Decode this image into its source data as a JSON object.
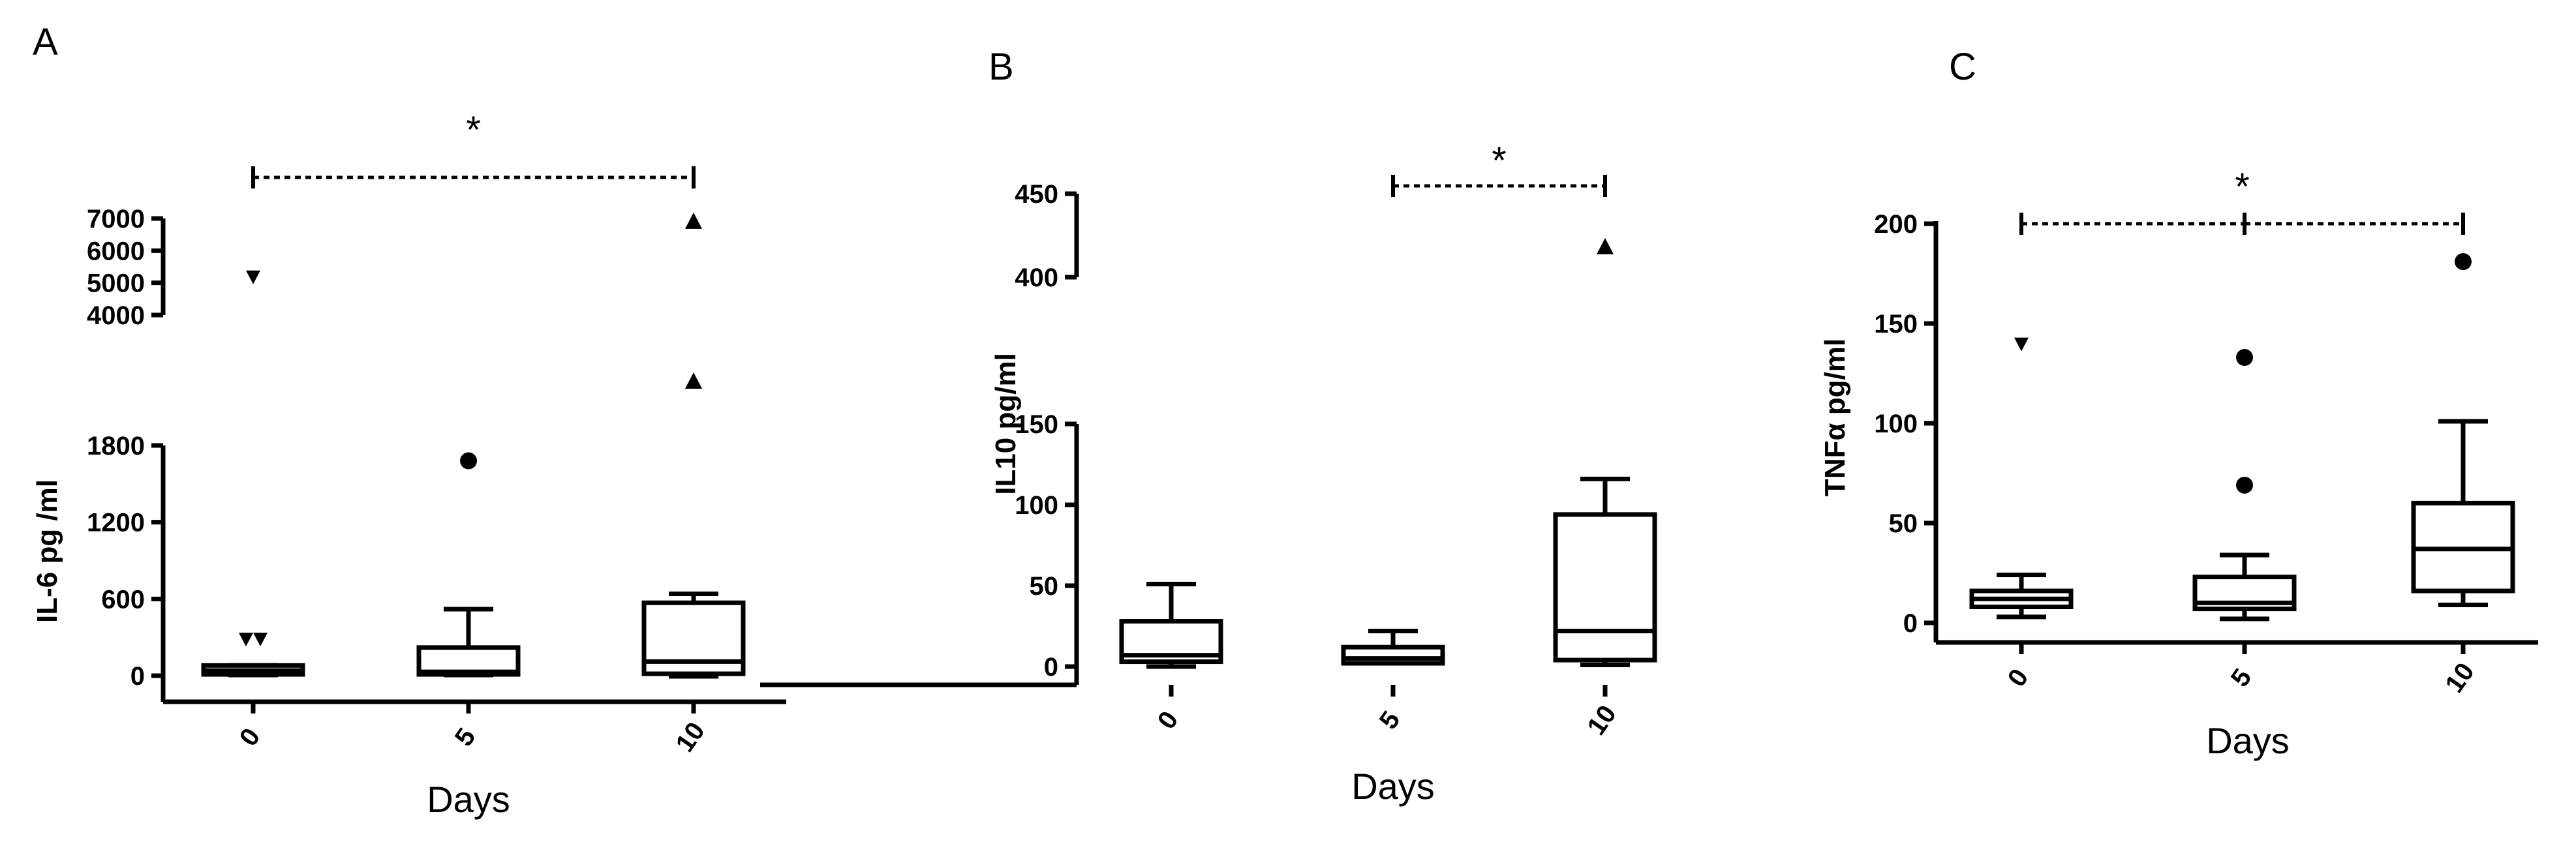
{
  "chart_data": [
    {
      "panel": "A",
      "type": "box",
      "ylabel": "IL-6 pg /ml",
      "xlabel": "Days",
      "categories": [
        "0",
        "5",
        "10"
      ],
      "y_axis_broken": true,
      "ylim_lower": [
        -40,
        2000
      ],
      "ylim_upper": [
        4000,
        7000
      ],
      "yticks_lower": [
        "0",
        "600",
        "1200",
        "1800"
      ],
      "yticks_upper": [
        "4000",
        "5000",
        "6000",
        "7000"
      ],
      "boxes": [
        {
          "q1": 10,
          "median": 40,
          "q3": 80,
          "whisker_low": 5,
          "whisker_high": 80
        },
        {
          "q1": 10,
          "median": 30,
          "q3": 220,
          "whisker_low": 5,
          "whisker_high": 520
        },
        {
          "q1": 15,
          "median": 110,
          "q3": 570,
          "whisker_low": -5,
          "whisker_high": 640
        }
      ],
      "outliers": [
        {
          "category": "0",
          "value": 290,
          "marker": "triangle-down"
        },
        {
          "category": "0",
          "value": 290,
          "marker": "triangle-down"
        },
        {
          "category": "0",
          "value": 5200,
          "marker": "triangle-down"
        },
        {
          "category": "5",
          "value": 1680,
          "marker": "circle"
        },
        {
          "category": "10",
          "value": 2300,
          "marker": "triangle-up"
        },
        {
          "category": "10",
          "value": 6900,
          "marker": "triangle-up"
        }
      ],
      "significance": [
        {
          "from": "0",
          "to": "10",
          "label": "*"
        }
      ]
    },
    {
      "panel": "B",
      "type": "box",
      "ylabel": "IL10 pg/ml",
      "xlabel": "Days",
      "categories": [
        "0",
        "5",
        "10"
      ],
      "y_axis_broken": true,
      "ylim_lower": [
        -10,
        150
      ],
      "ylim_upper": [
        400,
        450
      ],
      "yticks_lower": [
        "0",
        "50",
        "100",
        "150"
      ],
      "yticks_upper": [
        "400",
        "450"
      ],
      "boxes": [
        {
          "q1": 3,
          "median": 7,
          "q3": 28,
          "whisker_low": 0,
          "whisker_high": 51
        },
        {
          "q1": 2,
          "median": 5,
          "q3": 12,
          "whisker_low": 2,
          "whisker_high": 22
        },
        {
          "q1": 4,
          "median": 22,
          "q3": 94,
          "whisker_low": 1,
          "whisker_high": 116
        }
      ],
      "outliers": [
        {
          "category": "10",
          "value": 418,
          "marker": "triangle-up"
        }
      ],
      "significance": [
        {
          "from": "5",
          "to": "10",
          "label": "*"
        }
      ]
    },
    {
      "panel": "C",
      "type": "box",
      "ylabel": "TNFα pg/ml",
      "xlabel": "Days",
      "categories": [
        "0",
        "5",
        "10"
      ],
      "y_axis_broken": false,
      "ylim": [
        -10,
        200
      ],
      "yticks": [
        "0",
        "50",
        "100",
        "150",
        "200"
      ],
      "boxes": [
        {
          "q1": 8,
          "median": 12,
          "q3": 16,
          "whisker_low": 3,
          "whisker_high": 24
        },
        {
          "q1": 7,
          "median": 10,
          "q3": 23,
          "whisker_low": 2,
          "whisker_high": 34
        },
        {
          "q1": 16,
          "median": 37,
          "q3": 60,
          "whisker_low": 9,
          "whisker_high": 101
        }
      ],
      "outliers": [
        {
          "category": "0",
          "value": 140,
          "marker": "triangle-down"
        },
        {
          "category": "5",
          "value": 133,
          "marker": "circle"
        },
        {
          "category": "5",
          "value": 69,
          "marker": "circle"
        },
        {
          "category": "10",
          "value": 181,
          "marker": "circle"
        }
      ],
      "significance": [
        {
          "from": "0",
          "to": "5",
          "label": ""
        },
        {
          "from": "5",
          "to": "10",
          "label": ""
        },
        {
          "from": "0",
          "to": "10",
          "label": "*"
        }
      ]
    }
  ]
}
